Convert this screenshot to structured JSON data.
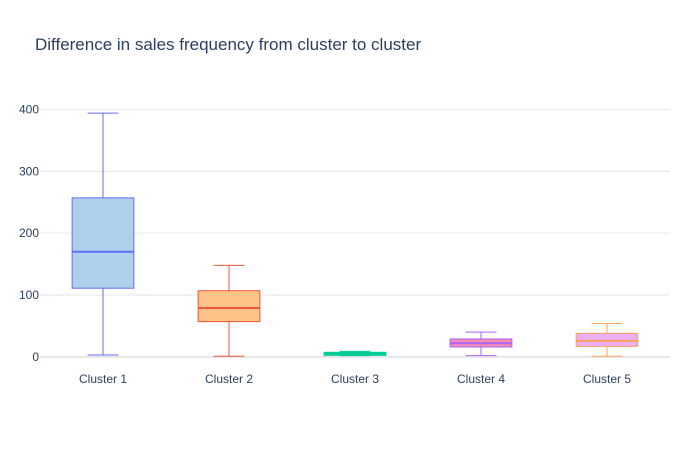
{
  "chart_data": {
    "type": "box",
    "title": "Difference in sales frequency from cluster to cluster",
    "xlabel": "",
    "ylabel": "",
    "ylim": [
      -5,
      420
    ],
    "yticks": [
      0,
      100,
      200,
      300,
      400
    ],
    "grid": true,
    "legend": "none",
    "categories": [
      "Cluster 1",
      "Cluster 2",
      "Cluster 3",
      "Cluster 4",
      "Cluster 5"
    ],
    "series": [
      {
        "category": "Cluster 1",
        "min": 3,
        "q1": 111,
        "median": 170,
        "q3": 257,
        "max": 394,
        "line_color": "#636efa",
        "fill_color": "#aed0ea"
      },
      {
        "category": "Cluster 2",
        "min": 1,
        "q1": 57,
        "median": 79,
        "q3": 107,
        "max": 148,
        "line_color": "#ef553b",
        "fill_color": "#fec487"
      },
      {
        "category": "Cluster 3",
        "min": 2,
        "q1": 3,
        "median": 5,
        "q3": 7,
        "max": 9,
        "line_color": "#00cc96",
        "fill_color": "#2bcc96"
      },
      {
        "category": "Cluster 4",
        "min": 2,
        "q1": 16,
        "median": 22,
        "q3": 29,
        "max": 40,
        "line_color": "#ab63fa",
        "fill_color": "#f58cb0"
      },
      {
        "category": "Cluster 5",
        "min": 1,
        "q1": 17,
        "median": 26,
        "q3": 38,
        "max": 54,
        "line_color": "#ffa15a",
        "fill_color": "#eaaef2"
      }
    ]
  }
}
